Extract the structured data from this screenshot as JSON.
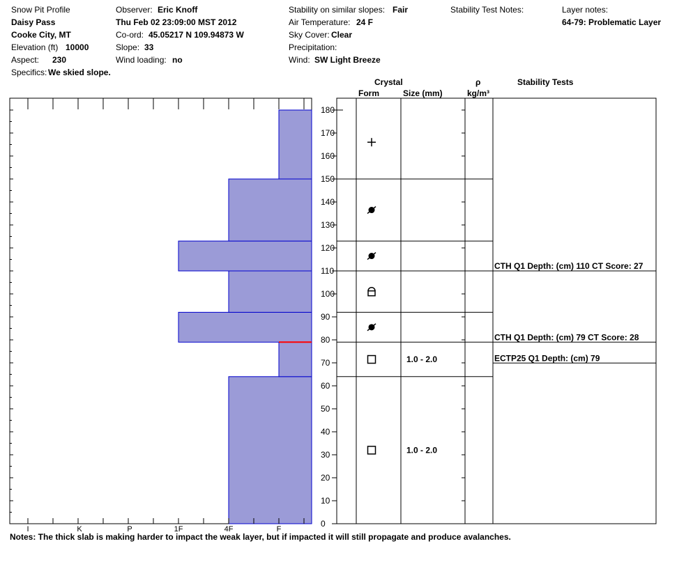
{
  "header": {
    "title": "Snow Pit Profile",
    "site": "Daisy Pass",
    "location": "Cooke City, MT",
    "elevation_label": "Elevation (ft)",
    "elevation_value": "10000",
    "aspect_label": "Aspect:",
    "aspect_value": "230",
    "specifics_label": "Specifics:",
    "specifics_value": "We skied slope.",
    "observer_label": "Observer:",
    "observer_value": "Eric Knoff",
    "datetime": "Thu Feb 02 23:09:00 MST 2012",
    "coord_label": "Co-ord:",
    "coord_value": "45.05217 N 109.94873 W",
    "slope_label": "Slope:",
    "slope_value": "33",
    "wind_loading_label": "Wind loading:",
    "wind_loading_value": "no",
    "stability_label": "Stability on similar slopes:",
    "stability_value": "Fair",
    "air_temp_label": "Air Temperature:",
    "air_temp_value": "24 F",
    "sky_label": "Sky Cover:",
    "sky_value": "Clear",
    "precip_label": "Precipitation:",
    "precip_value": "",
    "wind_label": "Wind:",
    "wind_value": "SW Light Breeze",
    "stability_notes_label": "Stability Test Notes:",
    "layer_notes_label": "Layer notes:",
    "layer_notes_value": "64-79: Problematic Layer"
  },
  "columns": {
    "crystal": "Crystal",
    "form": "Form",
    "size": "Size (mm)",
    "rho": "ρ",
    "density_unit": "kg/m³",
    "stability_tests": "Stability Tests"
  },
  "notes": "Notes:  The thick slab is making harder to impact the weak layer, but if impacted it will still propagate and produce avalanches.",
  "colors": {
    "hardness_fill": "#9b9bd7",
    "hardness_edge": "#0000cc",
    "weak_layer": "#ff0000"
  },
  "chart_data": {
    "type": "bar",
    "orientation": "horizontal",
    "y_axis": {
      "label": "",
      "min": 0,
      "max": 180,
      "ticks": [
        0,
        10,
        20,
        30,
        40,
        50,
        60,
        70,
        80,
        90,
        100,
        110,
        120,
        130,
        140,
        150,
        160,
        170,
        180
      ]
    },
    "x_axis": {
      "categories": [
        "I",
        "K",
        "P",
        "1F",
        "4F",
        "F"
      ]
    },
    "layers": [
      {
        "bottom": 0,
        "top": 64,
        "hardness": "4F",
        "form": "facets",
        "size": "1.0 - 2.0"
      },
      {
        "bottom": 64,
        "top": 79,
        "hardness": "F",
        "form": "facets",
        "size": "1.0 - 2.0"
      },
      {
        "bottom": 79,
        "top": 92,
        "hardness": "1F",
        "form": "decomposing-fragments",
        "size": ""
      },
      {
        "bottom": 92,
        "top": 110,
        "hardness": "4F",
        "form": "rounding-facets",
        "size": ""
      },
      {
        "bottom": 110,
        "top": 123,
        "hardness": "1F",
        "form": "decomposing-fragments",
        "size": ""
      },
      {
        "bottom": 123,
        "top": 150,
        "hardness": "4F",
        "form": "decomposing-fragments",
        "size": ""
      },
      {
        "bottom": 150,
        "top": 180,
        "hardness": "F",
        "form": "precipitation",
        "size": ""
      }
    ],
    "weak_layer_depth": 79,
    "stability_tests": [
      {
        "depth": 110,
        "text": "CTH Q1 Depth: (cm) 110 CT Score: 27"
      },
      {
        "depth": 79,
        "text": "CTH Q1 Depth: (cm) 79 CT Score: 28"
      },
      {
        "depth": 79,
        "text": "ECTP25 Q1 Depth: (cm) 79"
      }
    ]
  }
}
